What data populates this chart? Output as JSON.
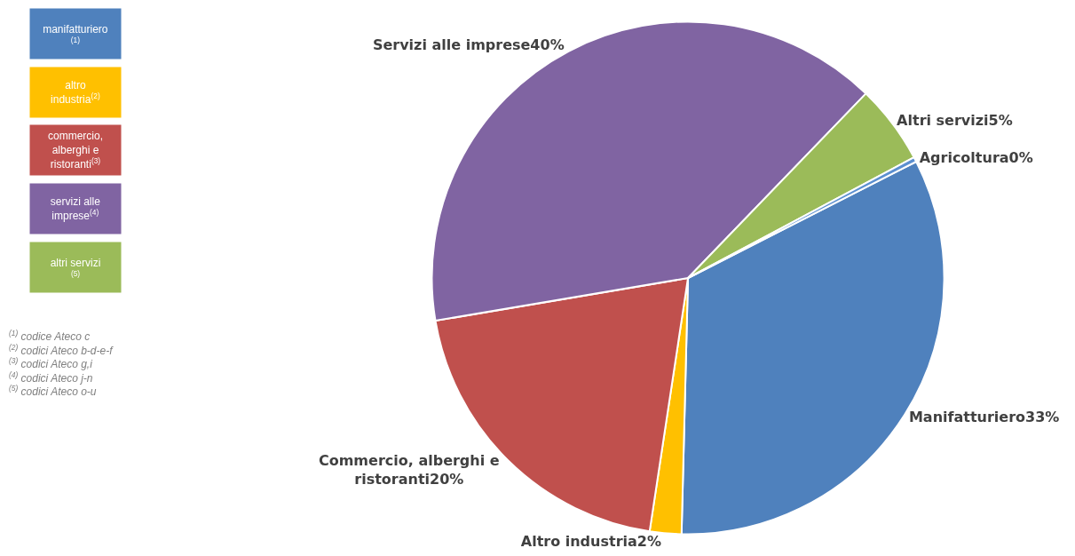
{
  "chart_data": {
    "type": "pie",
    "categories": [
      "Manifatturiero",
      "Altro industria",
      "Commercio, alberghi e\nristoranti",
      "Servizi alle imprese",
      "Altri servizi",
      "Agricoltura"
    ],
    "values": [
      33,
      2,
      20,
      40,
      5,
      0.3
    ],
    "value_labels": [
      "33%",
      "2%",
      "20%",
      "40%",
      "5%",
      "0%"
    ],
    "colors": [
      "#4f81bd",
      "#ffc000",
      "#c0504d",
      "#8064a2",
      "#9bbb59",
      "#5b8fd0"
    ],
    "legend": false,
    "annotations": [
      "manifatturiero\n$^{(1)}$",
      "altro\nindustria$^{(2)}$",
      "commercio,\nalberghi e\nristoranti$^{(3)}$",
      "servizi alle\nimprese$^{(4)}$",
      "altri servizi\n$^{(5)}$",
      "$^{(1)}$ codice Ateco c\n$^{(2)}$ codici Ateco b-d-e-f\n$^{(3)}$ codici Ateco g,i\n$^{(4)}$ codici Ateco j-n\n$^{(5)}$ codici Ateco o-u"
    ]
  }
}
